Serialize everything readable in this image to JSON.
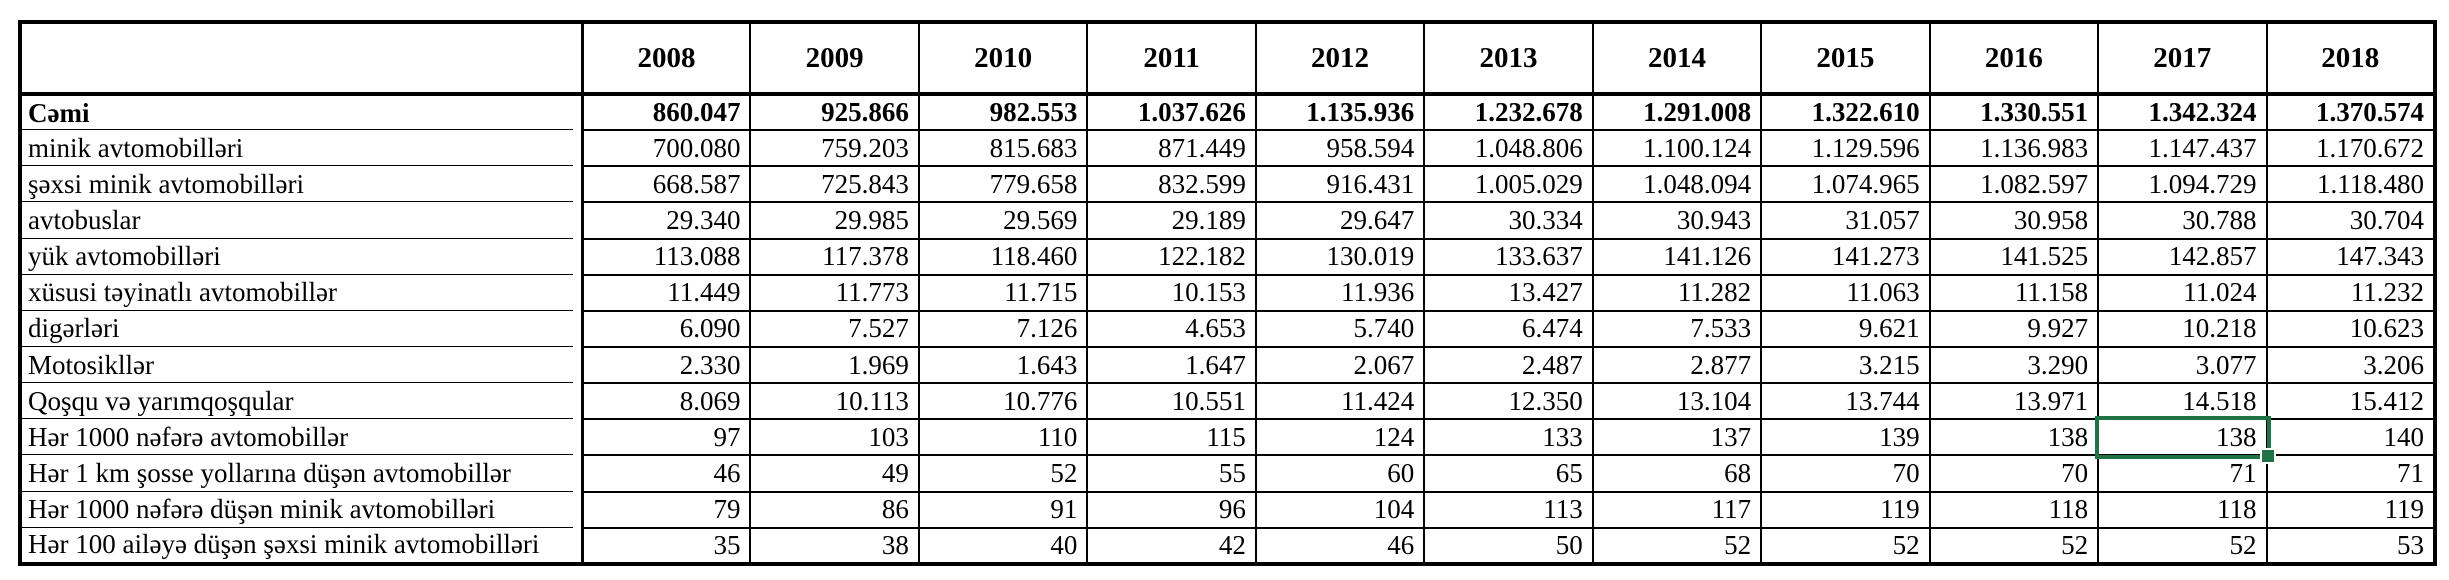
{
  "app": {
    "kind": "spreadsheet-table-screenshot"
  },
  "colors": {
    "grid": "#000000",
    "background": "#FFFFFF",
    "text": "#000000",
    "selection_green": "#217346"
  },
  "table": {
    "corner": "",
    "years": [
      "2008",
      "2009",
      "2010",
      "2011",
      "2012",
      "2013",
      "2014",
      "2015",
      "2016",
      "2017",
      "2018"
    ],
    "rows": [
      {
        "label": "Cəmi",
        "bold": true,
        "values": [
          "860.047",
          "925.866",
          "982.553",
          "1.037.626",
          "1.135.936",
          "1.232.678",
          "1.291.008",
          "1.322.610",
          "1.330.551",
          "1.342.324",
          "1.370.574"
        ]
      },
      {
        "label": "minik avtomobilləri",
        "bold": false,
        "values": [
          "700.080",
          "759.203",
          "815.683",
          "871.449",
          "958.594",
          "1.048.806",
          "1.100.124",
          "1.129.596",
          "1.136.983",
          "1.147.437",
          "1.170.672"
        ]
      },
      {
        "label": "şəxsi minik avtomobilləri",
        "bold": false,
        "values": [
          "668.587",
          "725.843",
          "779.658",
          "832.599",
          "916.431",
          "1.005.029",
          "1.048.094",
          "1.074.965",
          "1.082.597",
          "1.094.729",
          "1.118.480"
        ]
      },
      {
        "label": "avtobuslar",
        "bold": false,
        "values": [
          "29.340",
          "29.985",
          "29.569",
          "29.189",
          "29.647",
          "30.334",
          "30.943",
          "31.057",
          "30.958",
          "30.788",
          "30.704"
        ]
      },
      {
        "label": "yük avtomobilləri",
        "bold": false,
        "values": [
          "113.088",
          "117.378",
          "118.460",
          "122.182",
          "130.019",
          "133.637",
          "141.126",
          "141.273",
          "141.525",
          "142.857",
          "147.343"
        ]
      },
      {
        "label": "xüsusi təyinatlı avtomobillər",
        "bold": false,
        "values": [
          "11.449",
          "11.773",
          "11.715",
          "10.153",
          "11.936",
          "13.427",
          "11.282",
          "11.063",
          "11.158",
          "11.024",
          "11.232"
        ]
      },
      {
        "label": "digərləri",
        "bold": false,
        "values": [
          "6.090",
          "7.527",
          "7.126",
          "4.653",
          "5.740",
          "6.474",
          "7.533",
          "9.621",
          "9.927",
          "10.218",
          "10.623"
        ]
      },
      {
        "label": "Motosikllər",
        "bold": false,
        "values": [
          "2.330",
          "1.969",
          "1.643",
          "1.647",
          "2.067",
          "2.487",
          "2.877",
          "3.215",
          "3.290",
          "3.077",
          "3.206"
        ]
      },
      {
        "label": "Qoşqu və yarımqoşqular",
        "bold": false,
        "values": [
          "8.069",
          "10.113",
          "10.776",
          "10.551",
          "11.424",
          "12.350",
          "13.104",
          "13.744",
          "13.971",
          "14.518",
          "15.412"
        ]
      },
      {
        "label": "Hər 1000 nəfərə avtomobillər",
        "bold": false,
        "values": [
          "97",
          "103",
          "110",
          "115",
          "124",
          "133",
          "137",
          "139",
          "138",
          "138",
          "140"
        ]
      },
      {
        "label": "Hər 1 km şosse yollarına düşən avtomobillər",
        "bold": false,
        "values": [
          "46",
          "49",
          "52",
          "55",
          "60",
          "65",
          "68",
          "70",
          "70",
          "71",
          "71"
        ]
      },
      {
        "label": "Hər 1000 nəfərə düşən minik avtomobilləri",
        "bold": false,
        "values": [
          "79",
          "86",
          "91",
          "96",
          "104",
          "113",
          "117",
          "119",
          "118",
          "118",
          "119"
        ]
      },
      {
        "label": "Hər 100 ailəyə düşən şəxsi minik avtomobilləri",
        "bold": false,
        "values": [
          "35",
          "38",
          "40",
          "42",
          "46",
          "50",
          "52",
          "52",
          "52",
          "52",
          "53"
        ]
      }
    ]
  },
  "selection": {
    "year": "2017",
    "row_label": "Hər 1000 nəfərə avtomobillər",
    "value": "138",
    "row_index": 9,
    "col_index": 9,
    "border_color": "#217346"
  }
}
